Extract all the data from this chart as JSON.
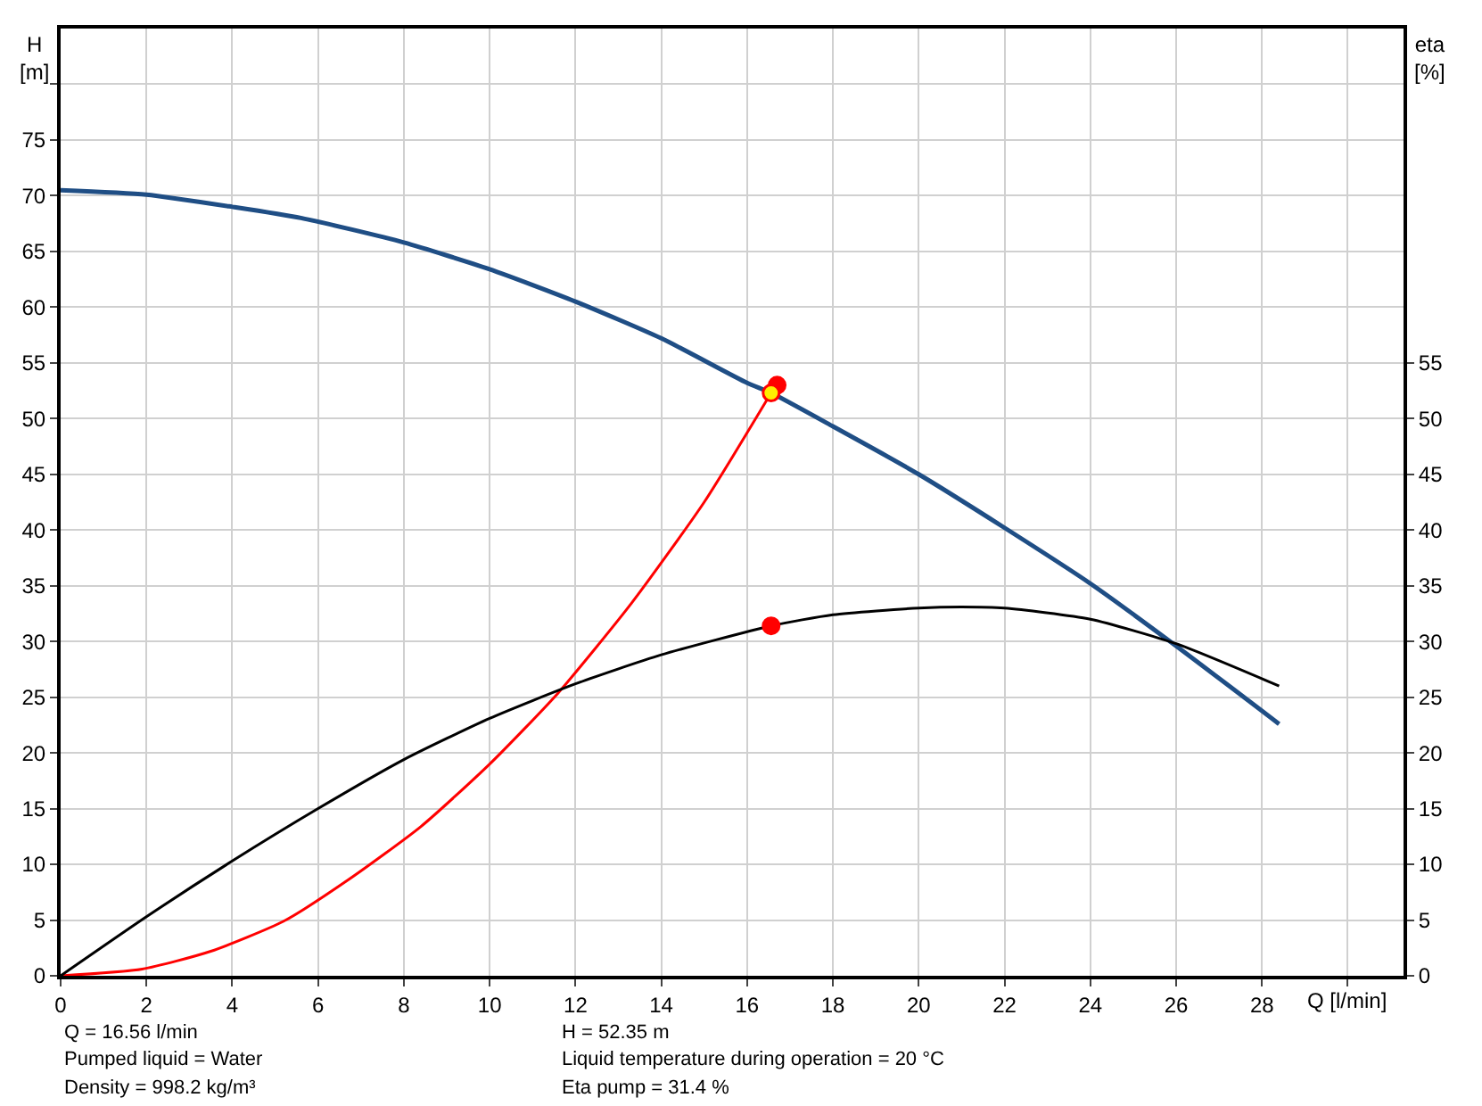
{
  "chart_data": {
    "type": "line",
    "xlabel": "Q [l/min]",
    "ylabel": "H\n[m]",
    "y2label": "eta\n[%]",
    "xlim": [
      0,
      31.3
    ],
    "xticks": [
      0,
      2,
      4,
      6,
      8,
      10,
      12,
      14,
      16,
      18,
      20,
      22,
      24,
      26,
      28,
      {
        "value": 30,
        "label": null
      }
    ],
    "ylim": [
      0,
      85
    ],
    "yticks": [
      0,
      5,
      10,
      15,
      20,
      25,
      30,
      35,
      40,
      45,
      50,
      55,
      60,
      65,
      70,
      75,
      {
        "value": 80,
        "label": null
      }
    ],
    "y2lim": [
      0,
      85
    ],
    "y2ticks": [
      0,
      5,
      10,
      15,
      20,
      25,
      30,
      35,
      40,
      45,
      50,
      55
    ],
    "grid": true,
    "series": [
      {
        "color": "#1f4e85",
        "x": [
          0,
          2,
          4,
          5.6,
          8,
          10,
          12,
          14,
          16,
          16.56,
          18,
          20,
          22,
          24,
          26,
          28.4
        ],
        "values": [
          70.5,
          70.1,
          69.0,
          68.0,
          65.8,
          63.4,
          60.5,
          57.2,
          53.2,
          52.3,
          49.3,
          45.0,
          40.2,
          35.2,
          29.6,
          22.6
        ]
      },
      {
        "color": "#000000",
        "axis": "y2",
        "x": [
          0,
          2,
          4,
          6,
          8,
          10,
          12,
          14,
          16.56,
          18,
          20,
          21,
          22,
          24,
          26,
          28.4
        ],
        "values": [
          0,
          5.3,
          10.3,
          15.0,
          19.4,
          23.1,
          26.2,
          28.8,
          31.4,
          32.4,
          33.0,
          33.1,
          33.0,
          32.0,
          29.8,
          26.0
        ]
      },
      {
        "color": "#ff0000",
        "x": [
          0,
          1.9,
          3.5,
          5.2,
          6.7,
          8.4,
          10.0,
          11.6,
          13.3,
          15.0,
          16.56
        ],
        "values": [
          0,
          0.6,
          2.2,
          4.9,
          8.6,
          13.4,
          19.0,
          25.4,
          33.4,
          42.5,
          52.3
        ]
      },
      {
        "type": "scatter",
        "marker": "circle",
        "color": "#ff0000",
        "x": [
          16.7
        ],
        "values": [
          53.0
        ]
      },
      {
        "type": "scatter",
        "marker": "circle",
        "color": "#ffee00",
        "x": [
          16.56
        ],
        "values": [
          52.3
        ]
      },
      {
        "type": "scatter",
        "marker": "circle",
        "color": "#ff0000",
        "axis": "y2",
        "x": [
          16.56
        ],
        "values": [
          31.4
        ]
      }
    ],
    "annotations": [
      "Q = 16.56 l/min",
      "Pumped liquid = Water",
      "Density = 998.2 kg/m³",
      "H = 52.35 m",
      "Liquid temperature during operation = 20 °C",
      "Eta pump = 31.4 %"
    ]
  }
}
